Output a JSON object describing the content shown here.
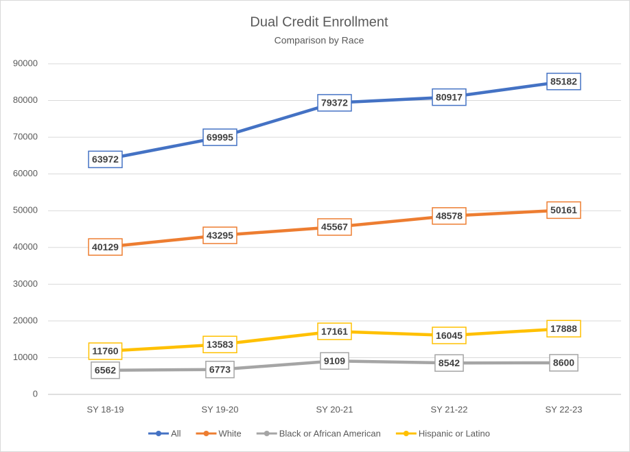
{
  "chart_data": {
    "type": "line",
    "title": "Dual Credit Enrollment",
    "subtitle": "Comparison by Race",
    "categories": [
      "SY 18-19",
      "SY 19-20",
      "SY 20-21",
      "SY 21-22",
      "SY 22-23"
    ],
    "series": [
      {
        "name": "All",
        "color": "#4472c4",
        "values": [
          63972,
          69995,
          79372,
          80917,
          85182
        ]
      },
      {
        "name": "White",
        "color": "#ed7d31",
        "values": [
          40129,
          43295,
          45567,
          48578,
          50161
        ]
      },
      {
        "name": "Black or African American",
        "color": "#a5a5a5",
        "values": [
          6562,
          6773,
          9109,
          8542,
          8600
        ]
      },
      {
        "name": "Hispanic or Latino",
        "color": "#ffc000",
        "values": [
          11760,
          13583,
          17161,
          16045,
          17888
        ]
      }
    ],
    "ylim": [
      0,
      90000
    ],
    "yticks": [
      0,
      10000,
      20000,
      30000,
      40000,
      50000,
      60000,
      70000,
      80000,
      90000
    ],
    "grid": true,
    "legend": "bottom"
  }
}
